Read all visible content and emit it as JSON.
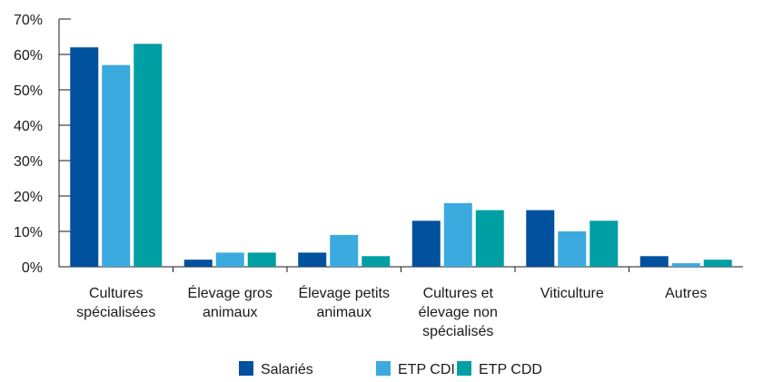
{
  "chart_data": {
    "type": "bar",
    "title": "",
    "xlabel": "",
    "ylabel": "",
    "ylim": [
      0,
      70
    ],
    "y_ticks": [
      "0%",
      "10%",
      "20%",
      "30%",
      "40%",
      "50%",
      "60%",
      "70%"
    ],
    "categories": [
      [
        "Cultures",
        "spécialisées"
      ],
      [
        "Élevage gros",
        "animaux"
      ],
      [
        "Élevage petits",
        "animaux"
      ],
      [
        "Cultures et",
        "élevage non",
        "spécialisés"
      ],
      [
        "Viticulture"
      ],
      [
        "Autres"
      ]
    ],
    "series": [
      {
        "name": "Salariés",
        "color": "#00519e",
        "values": [
          62,
          2,
          4,
          13,
          16,
          3
        ]
      },
      {
        "name": "ETP CDI",
        "color": "#3aaadf",
        "values": [
          57,
          4,
          9,
          18,
          10,
          1
        ]
      },
      {
        "name": "ETP CDD",
        "color": "#009fa4",
        "values": [
          63,
          4,
          3,
          16,
          13,
          2
        ]
      }
    ],
    "grid": false,
    "legend_position": "bottom"
  }
}
